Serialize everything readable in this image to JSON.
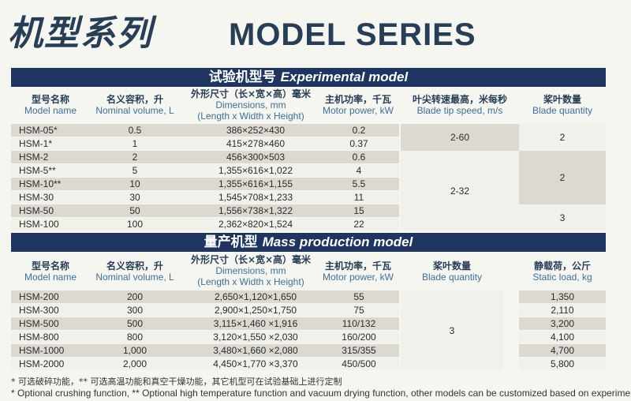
{
  "title": {
    "cn": "机型系列",
    "en": "MODEL SERIES"
  },
  "experimental": {
    "band_cn": "试验机型号",
    "band_en": "Experimental model",
    "headers": [
      {
        "cn": "型号名称",
        "en": "Model name"
      },
      {
        "cn": "名义容积，升",
        "en": "Nominal volume, L"
      },
      {
        "cn": "外形尺寸（长×宽×高）毫米",
        "en": "Dimensions, mm",
        "en2": "(Length x Width x Height)"
      },
      {
        "cn": "主机功率，千瓦",
        "en": "Motor power, kW"
      },
      {
        "cn": "叶尖转速最高，米每秒",
        "en": "Blade tip speed, m/s"
      },
      {
        "cn": "桨叶数量",
        "en": "Blade quantity"
      }
    ],
    "rows": [
      {
        "model": "HSM-05*",
        "volume": "0.5",
        "dims": "386×252×430",
        "power": "0.2"
      },
      {
        "model": "HSM-1*",
        "volume": "1",
        "dims": "415×278×460",
        "power": "0.37"
      },
      {
        "model": "HSM-2",
        "volume": "2",
        "dims": "456×300×503",
        "power": "0.6"
      },
      {
        "model": "HSM-5**",
        "volume": "5",
        "dims": "1,355×616×1,022",
        "power": "4"
      },
      {
        "model": "HSM-10**",
        "volume": "10",
        "dims": "1,355×616×1,155",
        "power": "5.5"
      },
      {
        "model": "HSM-30",
        "volume": "30",
        "dims": "1,545×708×1,233",
        "power": "11"
      },
      {
        "model": "HSM-50",
        "volume": "50",
        "dims": "1,556×738×1,322",
        "power": "15"
      },
      {
        "model": "HSM-100",
        "volume": "100",
        "dims": "2,362×820×1,524",
        "power": "22"
      }
    ],
    "tip_speed_groups": [
      "2-60",
      "2-32"
    ],
    "blade_groups": [
      "2",
      "2",
      "3"
    ]
  },
  "mass": {
    "band_cn": "量产机型",
    "band_en": "Mass production model",
    "headers": [
      {
        "cn": "型号名称",
        "en": "Model name"
      },
      {
        "cn": "名义容积，升",
        "en": "Nominal volume, L"
      },
      {
        "cn": "外形尺寸（长×宽×高）毫米",
        "en": "Dimensions, mm",
        "en2": "(Length x Width x Height)"
      },
      {
        "cn": "主机功率，千瓦",
        "en": "Motor power, kW"
      },
      {
        "cn": "桨叶数量",
        "en": "Blade quantity"
      },
      {
        "cn": "静载荷，公斤",
        "en": "Static load, kg"
      }
    ],
    "rows": [
      {
        "model": "HSM-200",
        "volume": "200",
        "dims": "2,650×1,120×1,650",
        "power": "55",
        "load": "1,350"
      },
      {
        "model": "HSM-300",
        "volume": "300",
        "dims": "2,900×1,250×1,750",
        "power": "75",
        "load": "2,110"
      },
      {
        "model": "HSM-500",
        "volume": "500",
        "dims": "3,115×1,460 ×1,916",
        "power": "110/132",
        "load": "3,200"
      },
      {
        "model": "HSM-800",
        "volume": "800",
        "dims": "3,120×1,550 ×2,030",
        "power": "160/200",
        "load": "4,100"
      },
      {
        "model": "HSM-1000",
        "volume": "1,000",
        "dims": "3,480×1,660 ×2,080",
        "power": "315/355",
        "load": "4,700"
      },
      {
        "model": "HSM-2000",
        "volume": "2,000",
        "dims": "4,450×1,770 ×3,370",
        "power": "450/500",
        "load": "5,800"
      }
    ],
    "blade_quantity": "3"
  },
  "notes": {
    "cn": "* 可选破碎功能，** 可选高温功能和真空干燥功能，其它机型可在试验基础上进行定制",
    "en": "* Optional crushing function, ** Optional high temperature function and vacuum drying function, other models can be customized based on experiments"
  },
  "colors": {
    "band": "#1d3560",
    "title": "#263e56",
    "row_gray": "#dcdad0",
    "row_light": "#f1f0ea",
    "header_en": "#3d6f98"
  }
}
